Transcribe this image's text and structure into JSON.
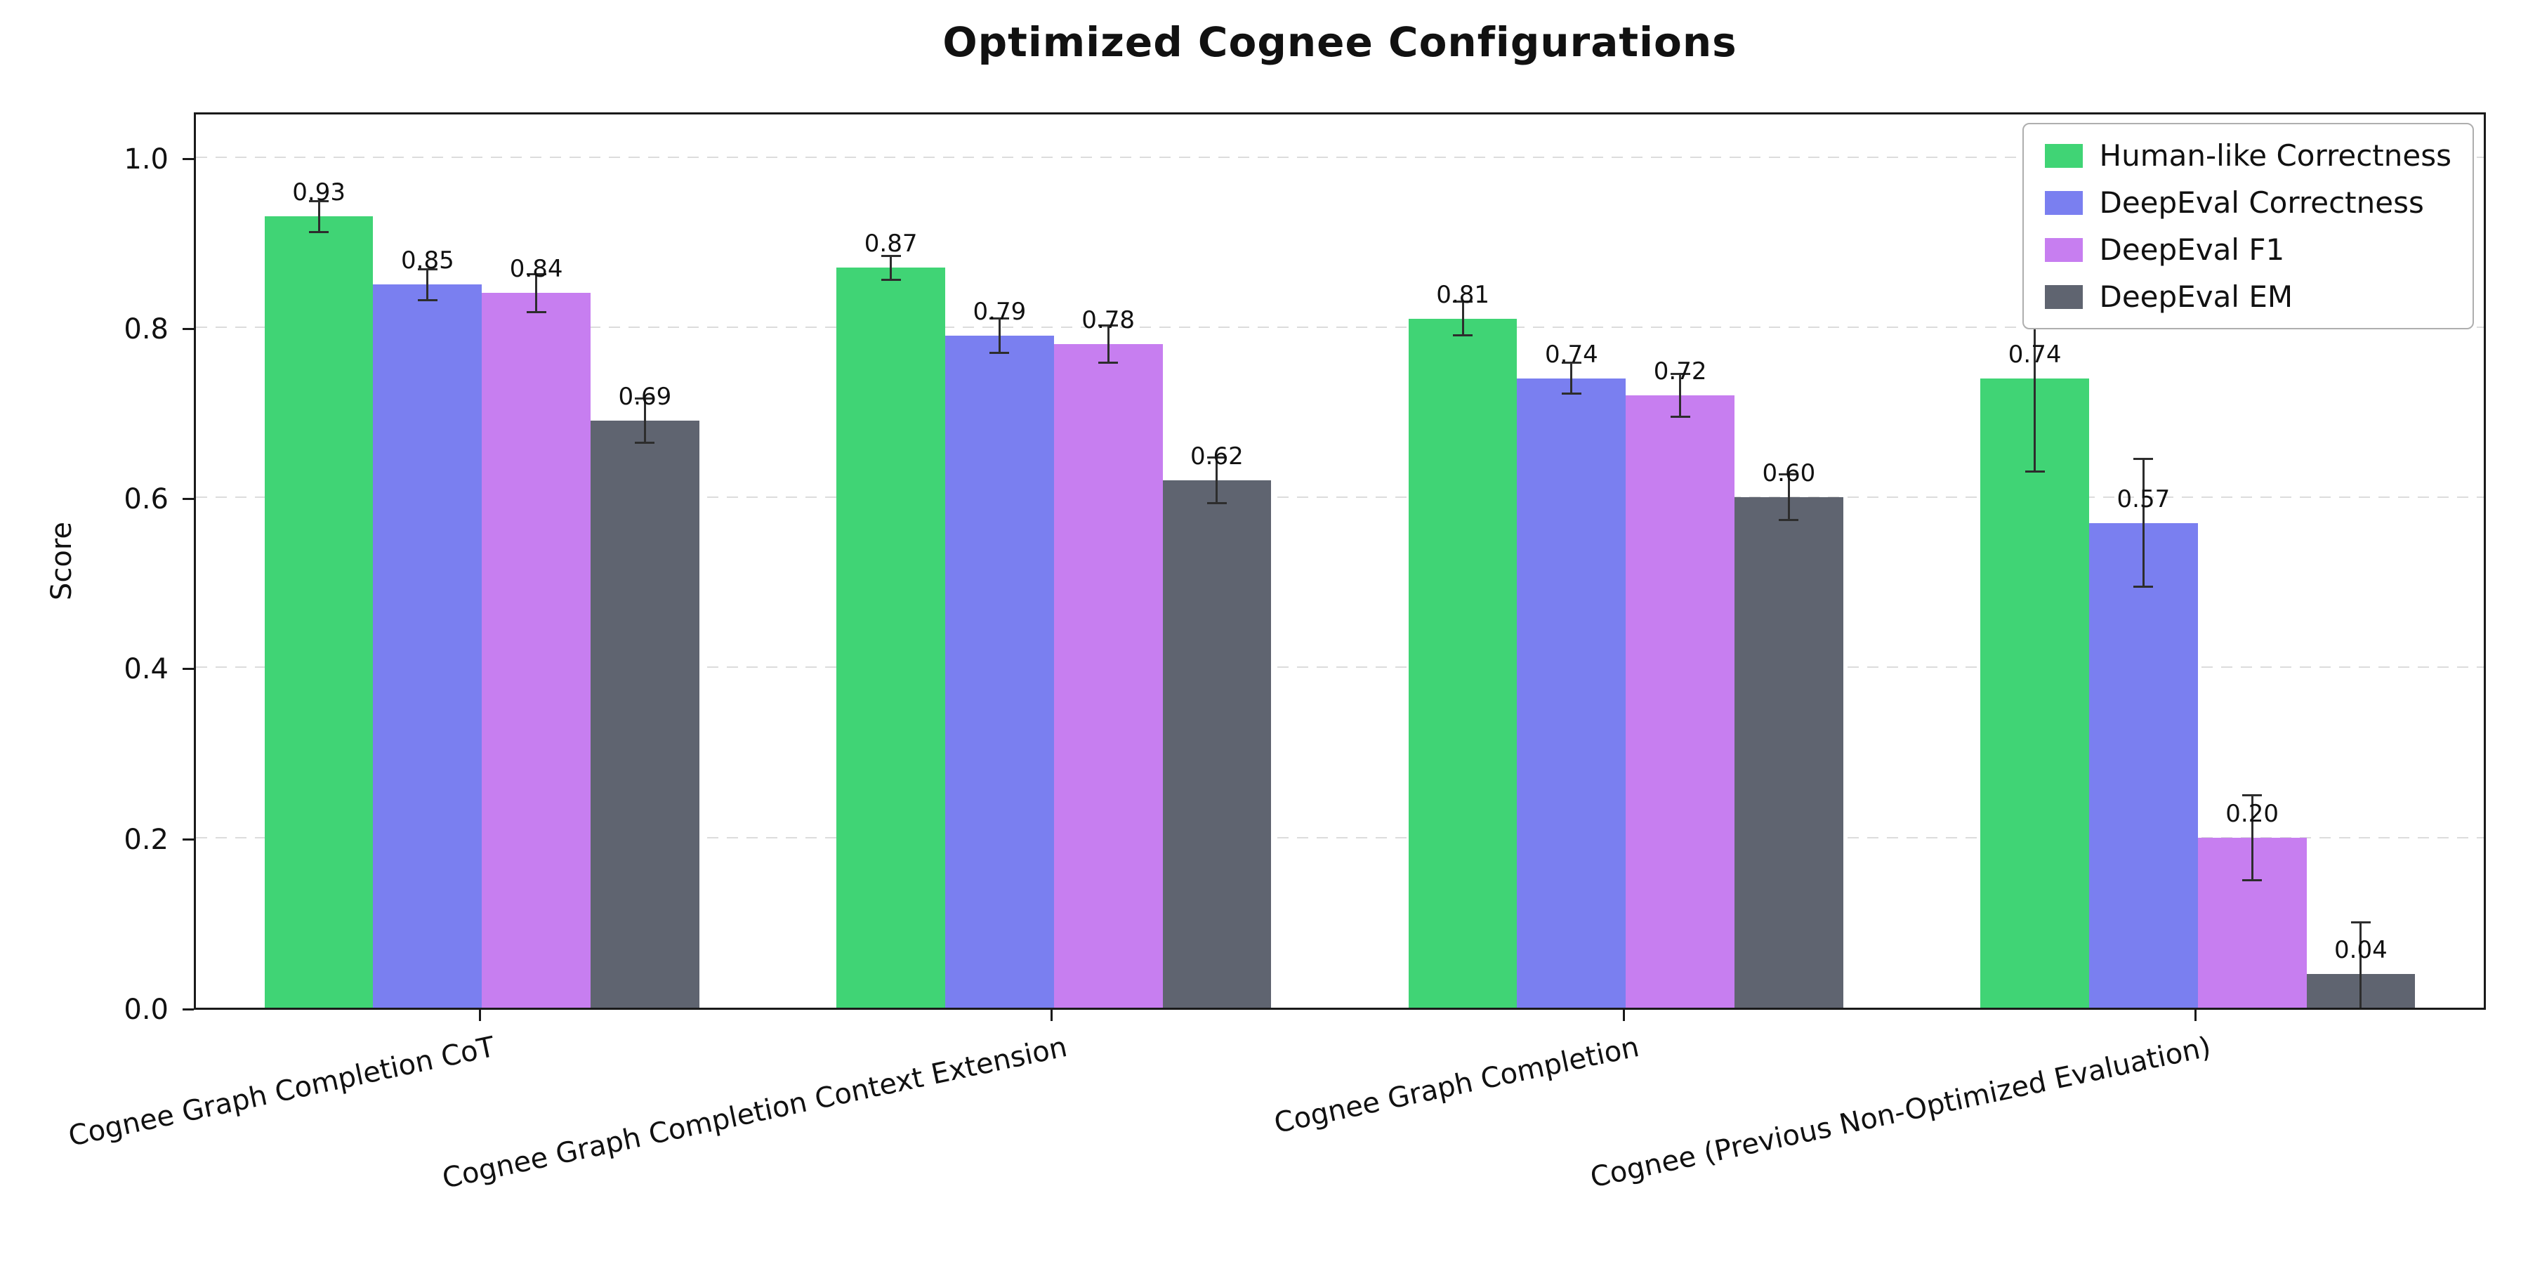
{
  "chart_data": {
    "type": "bar",
    "title": "Optimized Cognee Configurations",
    "ylabel": "Score",
    "ylim": [
      0,
      1.05
    ],
    "yticks": [
      0.0,
      0.2,
      0.4,
      0.6,
      0.8,
      1.0
    ],
    "grid": "horizontal-dashed",
    "legend_position": "upper right",
    "categories": [
      "Cognee Graph Completion CoT",
      "Cognee Graph Completion Context Extension",
      "Cognee Graph Completion",
      "Cognee (Previous Non-Optimized Evaluation)"
    ],
    "series": [
      {
        "name": "Human-like Correctness",
        "color": "#40d475",
        "values": [
          0.93,
          0.87,
          0.81,
          0.74
        ],
        "errors": [
          0.018,
          0.014,
          0.02,
          0.11
        ]
      },
      {
        "name": "DeepEval Correctness",
        "color": "#7a7ff0",
        "values": [
          0.85,
          0.79,
          0.74,
          0.57
        ],
        "errors": [
          0.018,
          0.02,
          0.018,
          0.075
        ]
      },
      {
        "name": "DeepEval F1",
        "color": "#c77ef0",
        "values": [
          0.84,
          0.78,
          0.72,
          0.2
        ],
        "errors": [
          0.022,
          0.022,
          0.025,
          0.05
        ]
      },
      {
        "name": "DeepEval EM",
        "color": "#5f6470",
        "values": [
          0.69,
          0.62,
          0.6,
          0.04
        ],
        "errors": [
          0.026,
          0.027,
          0.027,
          0.06
        ]
      }
    ]
  }
}
